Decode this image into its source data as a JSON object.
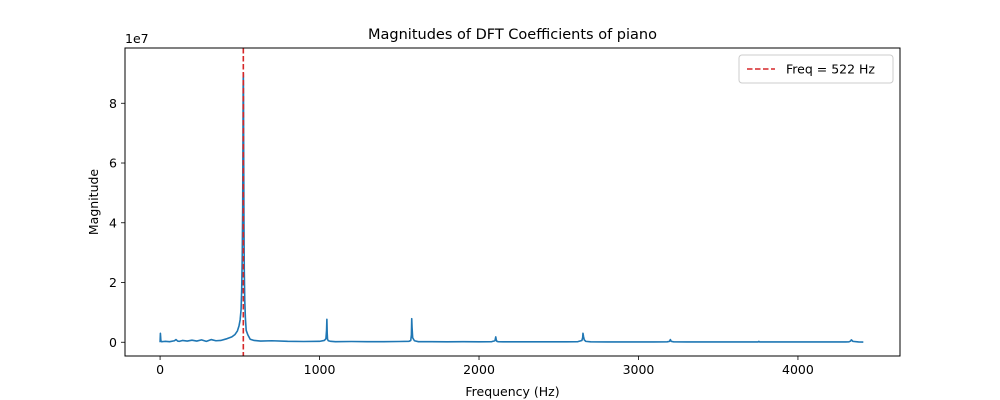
{
  "chart_data": {
    "type": "line",
    "title": "Magnitudes of DFT Coefficients of piano",
    "xlabel": "Frequency (Hz)",
    "ylabel": "Magnitude",
    "y_offset_label": "1e7",
    "xlim": [
      -220,
      4640
    ],
    "ylim": [
      -4.6,
      98.5
    ],
    "y_scale_note": "values in units of 1e7",
    "x_ticks": [
      0,
      1000,
      2000,
      3000,
      4000
    ],
    "x_tick_labels": [
      "0",
      "1000",
      "2000",
      "3000",
      "4000"
    ],
    "y_ticks": [
      0,
      20,
      40,
      60,
      80
    ],
    "y_tick_labels": [
      "0",
      "2",
      "4",
      "6",
      "8"
    ],
    "grid": false,
    "legend_position": "top-right",
    "series": [
      {
        "color": "#1f77b4",
        "x": [
          0,
          2,
          5,
          10,
          30,
          60,
          90,
          100,
          110,
          120,
          140,
          170,
          200,
          230,
          260,
          290,
          320,
          350,
          380,
          420,
          450,
          470,
          485,
          495,
          502,
          508,
          512,
          515,
          518,
          520,
          521,
          522,
          523,
          524,
          526,
          528,
          531,
          535,
          540,
          550,
          565,
          590,
          630,
          700,
          800,
          900,
          1000,
          1030,
          1040,
          1044,
          1046,
          1048,
          1050,
          1055,
          1070,
          1100,
          1200,
          1300,
          1400,
          1500,
          1560,
          1572,
          1576,
          1578,
          1580,
          1584,
          1595,
          1620,
          1700,
          1800,
          1900,
          2000,
          2080,
          2100,
          2105,
          2108,
          2112,
          2120,
          2150,
          2250,
          2350,
          2450,
          2550,
          2620,
          2645,
          2650,
          2652,
          2655,
          2660,
          2670,
          2700,
          2800,
          2900,
          3000,
          3100,
          3180,
          3195,
          3200,
          3205,
          3220,
          3300,
          3400,
          3500,
          3600,
          3700,
          3750,
          3755,
          3760,
          3800,
          3900,
          4000,
          4100,
          4200,
          4300,
          4320,
          4330,
          4335,
          4345,
          4380,
          4410
        ],
        "y": [
          0,
          3.0,
          0.5,
          0.2,
          0.3,
          0.2,
          0.5,
          0.9,
          0.4,
          0.3,
          0.6,
          0.4,
          0.7,
          0.4,
          0.8,
          0.3,
          0.9,
          0.5,
          0.6,
          1.2,
          1.8,
          2.6,
          3.8,
          5.5,
          7.5,
          11,
          18,
          28,
          45,
          70,
          85,
          90,
          84,
          68,
          40,
          24,
          14,
          8,
          4,
          2.5,
          1.0,
          0.6,
          0.4,
          0.5,
          0.3,
          0.25,
          0.3,
          0.6,
          1.2,
          4,
          7.7,
          3,
          1.0,
          0.5,
          0.3,
          0.2,
          0.25,
          0.2,
          0.2,
          0.25,
          0.3,
          0.6,
          2.5,
          7.9,
          5,
          1.5,
          0.5,
          0.2,
          0.2,
          0.15,
          0.2,
          0.15,
          0.2,
          0.5,
          1.8,
          0.8,
          0.3,
          0.2,
          0.15,
          0.15,
          0.15,
          0.15,
          0.15,
          0.2,
          0.6,
          1.5,
          3.0,
          2.0,
          0.8,
          0.3,
          0.15,
          0.1,
          0.1,
          0.1,
          0.1,
          0.15,
          0.3,
          0.9,
          0.3,
          0.15,
          0.1,
          0.1,
          0.1,
          0.1,
          0.1,
          0.1,
          0.3,
          0.1,
          0.1,
          0.1,
          0.1,
          0.1,
          0.1,
          0.1,
          0.15,
          0.4,
          0.8,
          0.3,
          0.1,
          0.05
        ]
      }
    ],
    "reference_line": {
      "x": 522,
      "color": "#d62728",
      "style": "dashed",
      "legend_label": "Freq = 522 Hz"
    }
  }
}
